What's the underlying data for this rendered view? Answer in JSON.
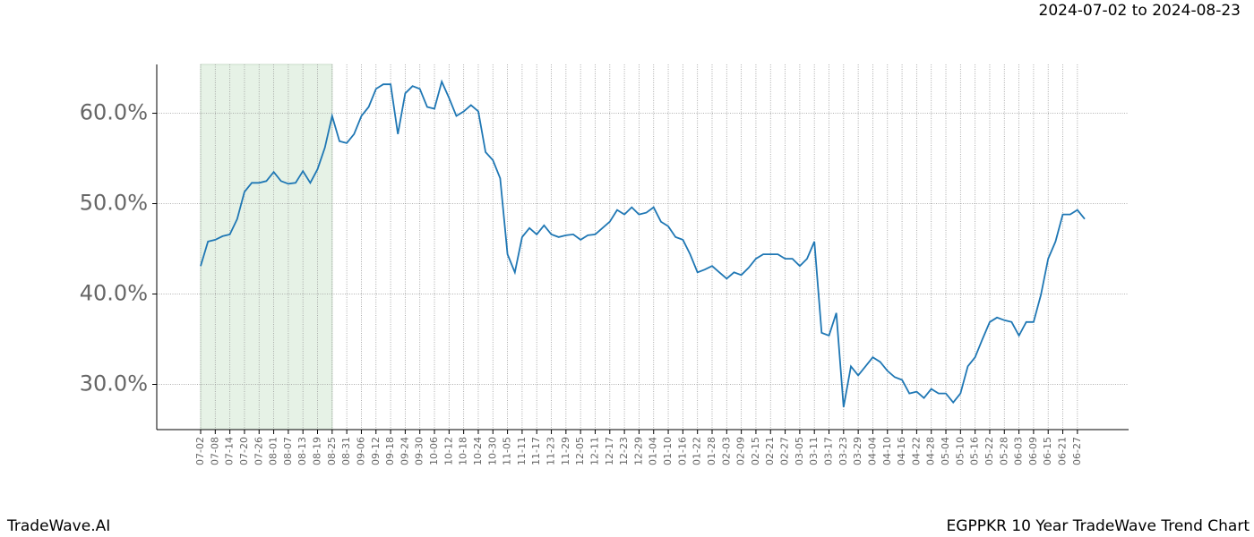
{
  "chart_data": {
    "type": "line",
    "title": "2024-07-02 to 2024-08-23",
    "footer_left": "TradeWave.AI",
    "footer_right": "EGPPKR 10 Year TradeWave Trend Chart",
    "categories": [
      "07-02",
      null,
      "07-08",
      null,
      "07-14",
      null,
      "07-20",
      null,
      "07-26",
      null,
      "08-01",
      null,
      "08-07",
      null,
      "08-13",
      null,
      "08-19",
      null,
      "08-25",
      null,
      "08-31",
      null,
      "09-06",
      null,
      "09-12",
      null,
      "09-18",
      null,
      "09-24",
      null,
      "09-30",
      null,
      "10-06",
      null,
      "10-12",
      null,
      "10-18",
      null,
      "10-24",
      null,
      "10-30",
      null,
      "11-05",
      null,
      "11-11",
      null,
      "11-17",
      null,
      "11-23",
      null,
      "11-29",
      null,
      "12-05",
      null,
      "12-11",
      null,
      "12-17",
      null,
      "12-23",
      null,
      "12-29",
      null,
      "01-04",
      null,
      "01-10",
      null,
      "01-16",
      null,
      "01-22",
      null,
      "01-28",
      null,
      "02-03",
      null,
      "02-09",
      null,
      "02-15",
      null,
      "02-21",
      null,
      "02-27",
      null,
      "03-05",
      null,
      "03-11",
      null,
      "03-17",
      null,
      "03-23",
      null,
      "03-29",
      null,
      "04-04",
      null,
      "04-10",
      null,
      "04-16",
      null,
      "04-22",
      null,
      "04-28",
      null,
      "05-04",
      null,
      "05-10",
      null,
      "05-16",
      null,
      "05-22",
      null,
      "05-28",
      null,
      "06-03",
      null,
      "06-09",
      null,
      "06-15",
      null,
      "06-21",
      null,
      "06-27",
      null
    ],
    "series": [
      {
        "color": "#1f77b4",
        "values": [
          43.1,
          45.8,
          46.0,
          46.4,
          46.6,
          48.3,
          51.3,
          52.3,
          52.3,
          52.5,
          53.5,
          52.5,
          52.2,
          52.3,
          53.6,
          52.3,
          53.8,
          56.2,
          59.7,
          56.9,
          56.7,
          57.7,
          59.7,
          60.7,
          62.7,
          63.2,
          63.2,
          57.7,
          62.2,
          63.0,
          62.7,
          60.7,
          60.5,
          63.5,
          61.7,
          59.7,
          60.2,
          60.9,
          60.2,
          55.7,
          54.8,
          52.8,
          44.4,
          42.4,
          46.3,
          47.3,
          46.6,
          47.6,
          46.6,
          46.3,
          46.5,
          46.6,
          46.0,
          46.5,
          46.6,
          47.3,
          48.0,
          49.3,
          48.8,
          49.6,
          48.8,
          49.0,
          49.6,
          48.0,
          47.5,
          46.3,
          46.0,
          44.4,
          42.4,
          42.7,
          43.1,
          42.4,
          41.7,
          42.4,
          42.1,
          42.9,
          43.9,
          44.4,
          44.4,
          44.4,
          43.9,
          43.9,
          43.1,
          43.9,
          45.8,
          35.7,
          35.4,
          37.9,
          27.5,
          32.0,
          31.0,
          32.0,
          33.0,
          32.5,
          31.5,
          30.8,
          30.5,
          29.0,
          29.2,
          28.5,
          29.5,
          29.0,
          29.0,
          28.0,
          29.0,
          32.0,
          33.0,
          35.0,
          36.9,
          37.4,
          37.1,
          36.9,
          35.4,
          36.9,
          36.9,
          39.9,
          43.9,
          45.8,
          48.8,
          48.8,
          49.3,
          48.3
        ]
      }
    ],
    "shaded_range": [
      "07-02",
      "08-25"
    ],
    "shade_color": "#e6f2e6",
    "ylim": [
      25,
      65.4
    ],
    "yticks": [
      {
        "value": 30,
        "label": "30.0%"
      },
      {
        "value": 40,
        "label": "40.0%"
      },
      {
        "value": 50,
        "label": "50.0%"
      },
      {
        "value": 60,
        "label": "60.0%"
      }
    ],
    "grid": true
  }
}
